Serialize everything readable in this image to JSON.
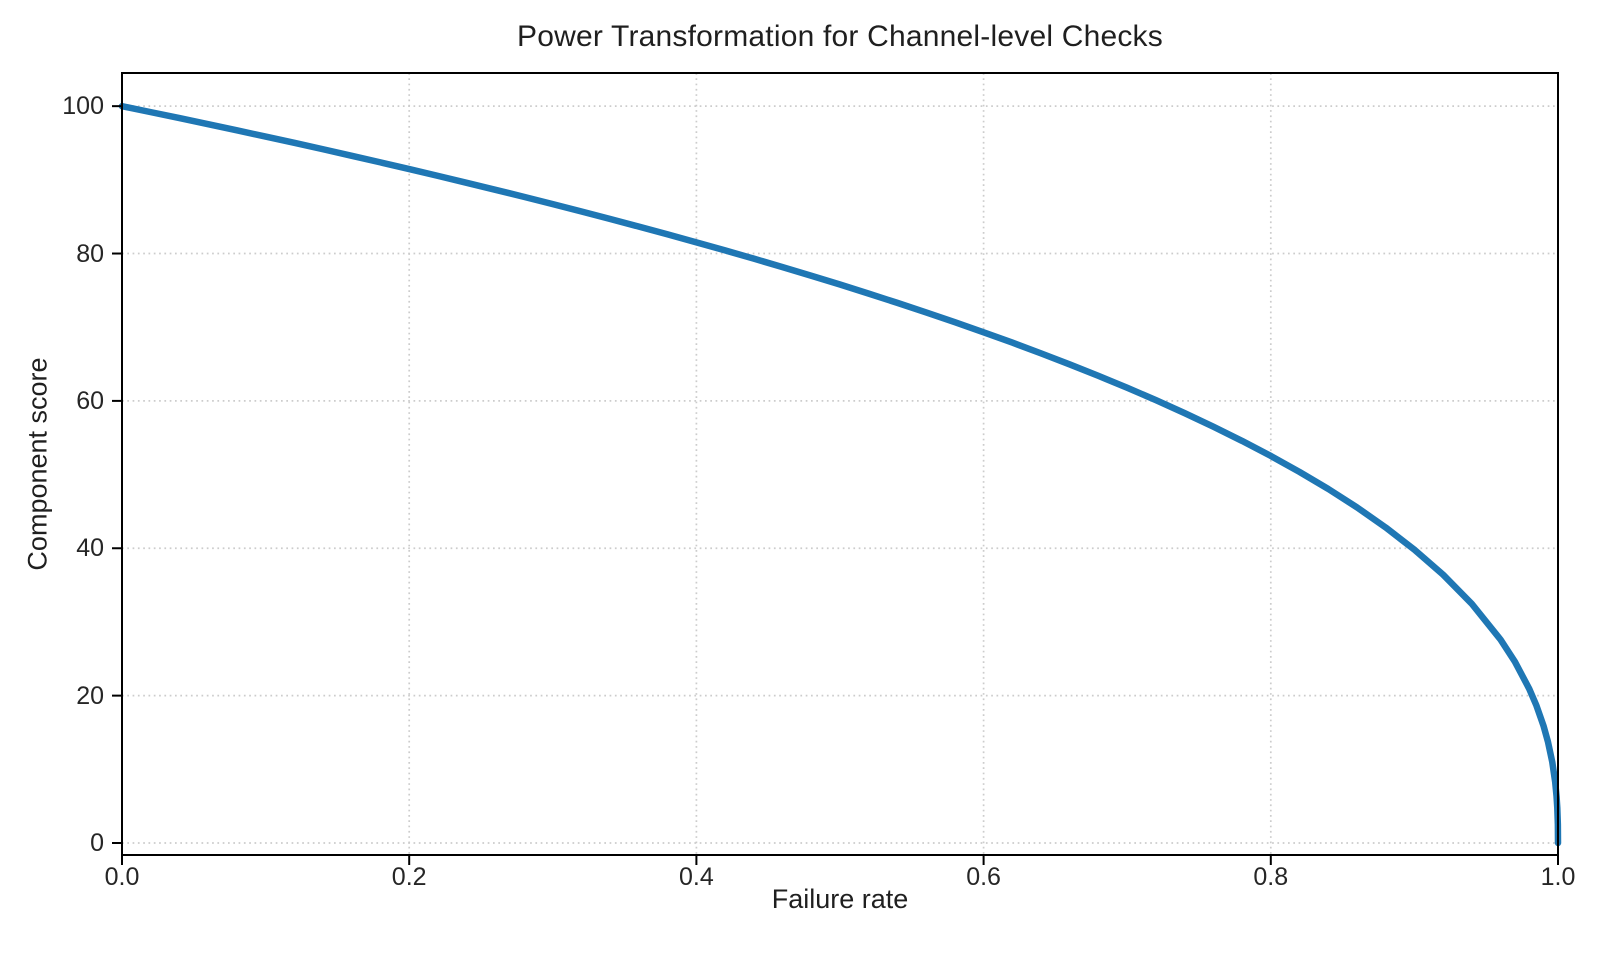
{
  "chart_data": {
    "type": "line",
    "title": "Power Transformation for Channel-level Checks",
    "xlabel": "Failure rate",
    "ylabel": "Component score",
    "xlim": [
      0.0,
      1.0
    ],
    "ylim": [
      0,
      100
    ],
    "xticks": [
      "0.0",
      "0.2",
      "0.4",
      "0.6",
      "0.8",
      "1.0"
    ],
    "yticks": [
      "0",
      "20",
      "40",
      "60",
      "80",
      "100"
    ],
    "grid": true,
    "grid_style": "dotted",
    "grid_color": "#cccccc",
    "background_color": "#ffffff",
    "spine_color": "#000000",
    "text_color": "#1f1f1f",
    "formula": "score = 100 * (1 - failure_rate)^0.4",
    "legend": null,
    "series": [
      {
        "name": "component_score",
        "color": "#1f77b4",
        "line_width": 6.5,
        "points": [
          [
            0.0,
            100.0
          ],
          [
            0.02,
            99.19
          ],
          [
            0.04,
            98.38
          ],
          [
            0.06,
            97.56
          ],
          [
            0.08,
            96.72
          ],
          [
            0.1,
            95.87
          ],
          [
            0.12,
            95.02
          ],
          [
            0.14,
            94.15
          ],
          [
            0.16,
            93.26
          ],
          [
            0.18,
            92.37
          ],
          [
            0.2,
            91.46
          ],
          [
            0.22,
            90.54
          ],
          [
            0.24,
            89.6
          ],
          [
            0.26,
            88.65
          ],
          [
            0.28,
            87.69
          ],
          [
            0.3,
            86.7
          ],
          [
            0.32,
            85.7
          ],
          [
            0.34,
            84.69
          ],
          [
            0.36,
            83.65
          ],
          [
            0.38,
            82.6
          ],
          [
            0.4,
            81.52
          ],
          [
            0.42,
            80.42
          ],
          [
            0.44,
            79.3
          ],
          [
            0.46,
            78.16
          ],
          [
            0.48,
            76.98
          ],
          [
            0.5,
            75.79
          ],
          [
            0.52,
            74.56
          ],
          [
            0.54,
            73.3
          ],
          [
            0.56,
            72.01
          ],
          [
            0.58,
            70.68
          ],
          [
            0.6,
            69.31
          ],
          [
            0.62,
            67.91
          ],
          [
            0.64,
            66.45
          ],
          [
            0.66,
            64.95
          ],
          [
            0.68,
            63.39
          ],
          [
            0.7,
            61.78
          ],
          [
            0.72,
            60.1
          ],
          [
            0.74,
            58.34
          ],
          [
            0.76,
            56.5
          ],
          [
            0.78,
            54.57
          ],
          [
            0.8,
            52.53
          ],
          [
            0.82,
            50.36
          ],
          [
            0.84,
            48.05
          ],
          [
            0.86,
            45.55
          ],
          [
            0.88,
            42.82
          ],
          [
            0.9,
            39.81
          ],
          [
            0.92,
            36.41
          ],
          [
            0.94,
            32.45
          ],
          [
            0.96,
            27.6
          ],
          [
            0.97,
            24.6
          ],
          [
            0.98,
            20.91
          ],
          [
            0.985,
            18.64
          ],
          [
            0.99,
            15.85
          ],
          [
            0.993,
            13.74
          ],
          [
            0.996,
            10.99
          ],
          [
            0.998,
            8.33
          ],
          [
            0.999,
            6.31
          ],
          [
            0.9995,
            4.78
          ],
          [
            0.9999,
            2.51
          ],
          [
            1.0,
            0.0
          ]
        ]
      }
    ]
  }
}
